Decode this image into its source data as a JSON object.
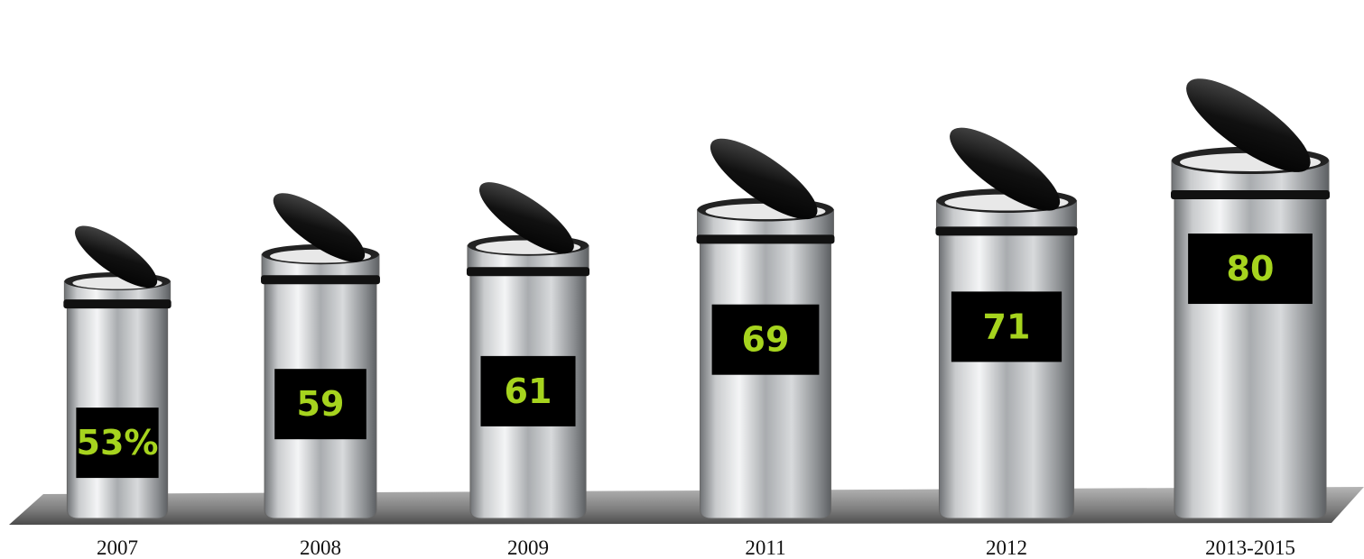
{
  "chart_data": {
    "type": "pictograph",
    "categories": [
      "2007",
      "2008",
      "2009",
      "2011",
      "2012",
      "2013-2015"
    ],
    "values": [
      53,
      59,
      61,
      69,
      71,
      80
    ],
    "value_labels": [
      "53%",
      "59",
      "61",
      "69",
      "71",
      "80"
    ],
    "color": "#a6d41e"
  }
}
